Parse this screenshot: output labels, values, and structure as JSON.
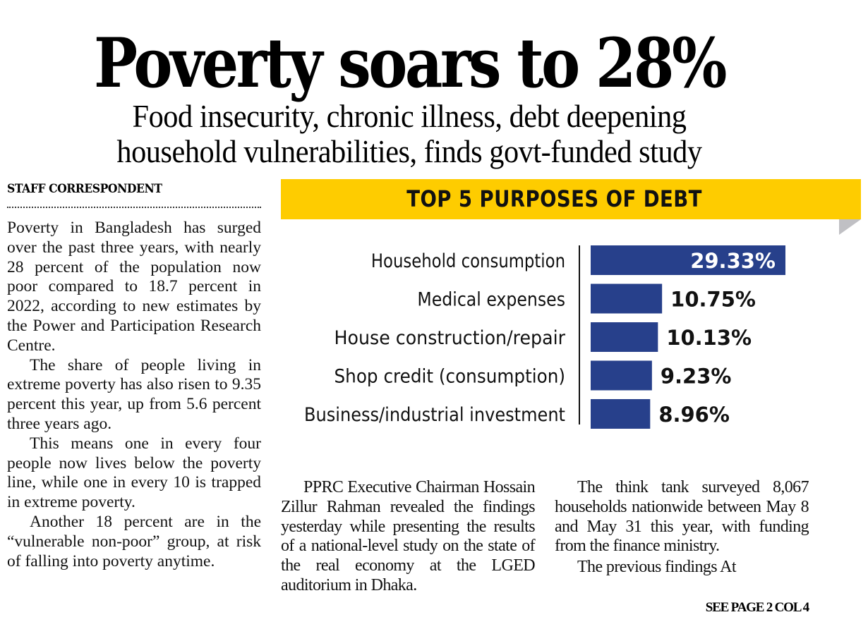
{
  "headline": "Poverty soars to 28%",
  "subheadline_lines": [
    "Food insecurity, chronic illness, debt deepening",
    "household vulnerabilities, finds govt-funded study"
  ],
  "byline": "STAFF CORRESPONDENT",
  "columns": {
    "col1": [
      "Poverty in Bangladesh has surged over the past three years, with nearly 28 percent of the population now poor compared to 18.7 percent in 2022, according to new estimates by the Power and Participation Research Centre.",
      "The share of people living in extreme poverty has also risen to 9.35 percent this year, up from 5.6 percent three years ago.",
      "This means one in every four people now lives below the poverty line, while one in every 10 is trapped in extreme poverty.",
      "Another 18 percent are in the “vulnerable non-poor” group, at risk of falling into poverty anytime."
    ],
    "col2": [
      "PPRC Executive Chairman Hossain Zillur Rahman revealed the findings yesterday while presenting the results of a national-level study on the state of the real economy at the LGED auditorium in Dhaka."
    ],
    "col3": [
      "The think tank surveyed 8,067 households nationwide between May 8 and May 31 this year, with funding from the finance ministry.",
      "The previous findings At"
    ]
  },
  "jump_line": "SEE PAGE 2 COL 4",
  "colors": {
    "banner": "#fecc00",
    "bar": "#27408b",
    "fold": "#c0c0c4"
  },
  "chart_data": {
    "type": "bar",
    "orientation": "horizontal",
    "title": "TOP 5 PURPOSES OF DEBT",
    "categories": [
      "Household consumption",
      "Medical expenses",
      "House construction/repair",
      "Shop credit (consumption)",
      "Business/industrial investment"
    ],
    "values": [
      29.33,
      10.75,
      10.13,
      9.23,
      8.96
    ],
    "value_labels": [
      "29.33%",
      "10.75%",
      "10.13%",
      "9.23%",
      "8.96%"
    ],
    "unit": "%",
    "xlabel": "",
    "ylabel": "",
    "xlim": [
      0,
      29.33
    ],
    "grid": false,
    "legend": "none"
  }
}
